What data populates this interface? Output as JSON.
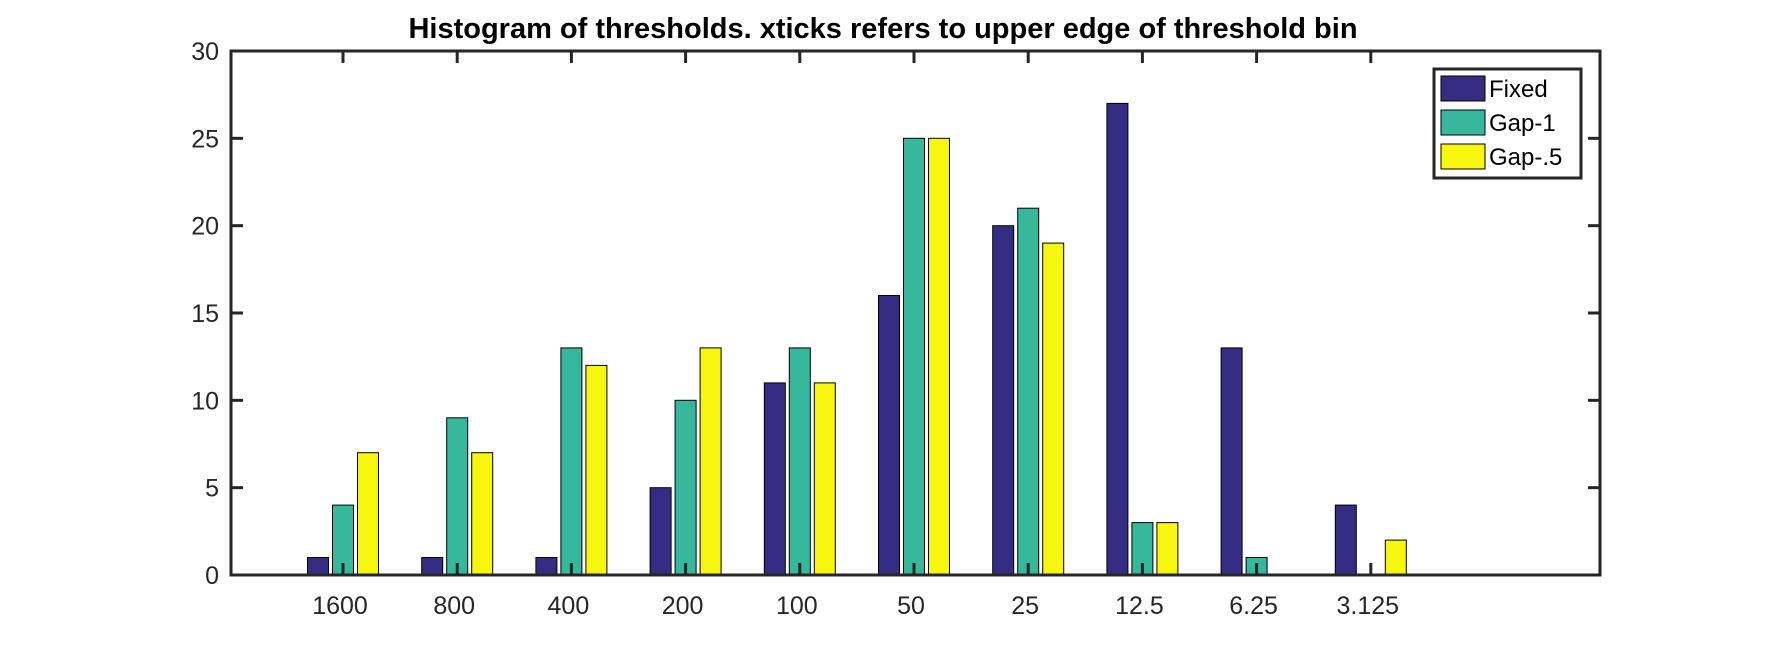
{
  "chart_data": {
    "type": "bar",
    "title": "Histogram of thresholds. xticks refers to upper edge of threshold bin",
    "xlabel": "",
    "ylabel": "",
    "categories": [
      "1600",
      "800",
      "400",
      "200",
      "100",
      "50",
      "25",
      "12.5",
      "6.25",
      "3.125"
    ],
    "series": [
      {
        "name": "Fixed",
        "color": "#342D83",
        "values": [
          1,
          1,
          1,
          5,
          11,
          16,
          20,
          27,
          13,
          4
        ]
      },
      {
        "name": "Gap-1",
        "color": "#37B89D",
        "values": [
          4,
          9,
          13,
          10,
          13,
          25,
          21,
          3,
          1,
          0
        ]
      },
      {
        "name": "Gap-.5",
        "color": "#F6F60F",
        "values": [
          7,
          7,
          12,
          13,
          11,
          25,
          19,
          3,
          0,
          2
        ]
      }
    ],
    "ylim": [
      0,
      30
    ],
    "yticks": [
      0,
      5,
      10,
      15,
      20,
      25,
      30
    ],
    "grid": false,
    "legend_position": "top-right"
  }
}
